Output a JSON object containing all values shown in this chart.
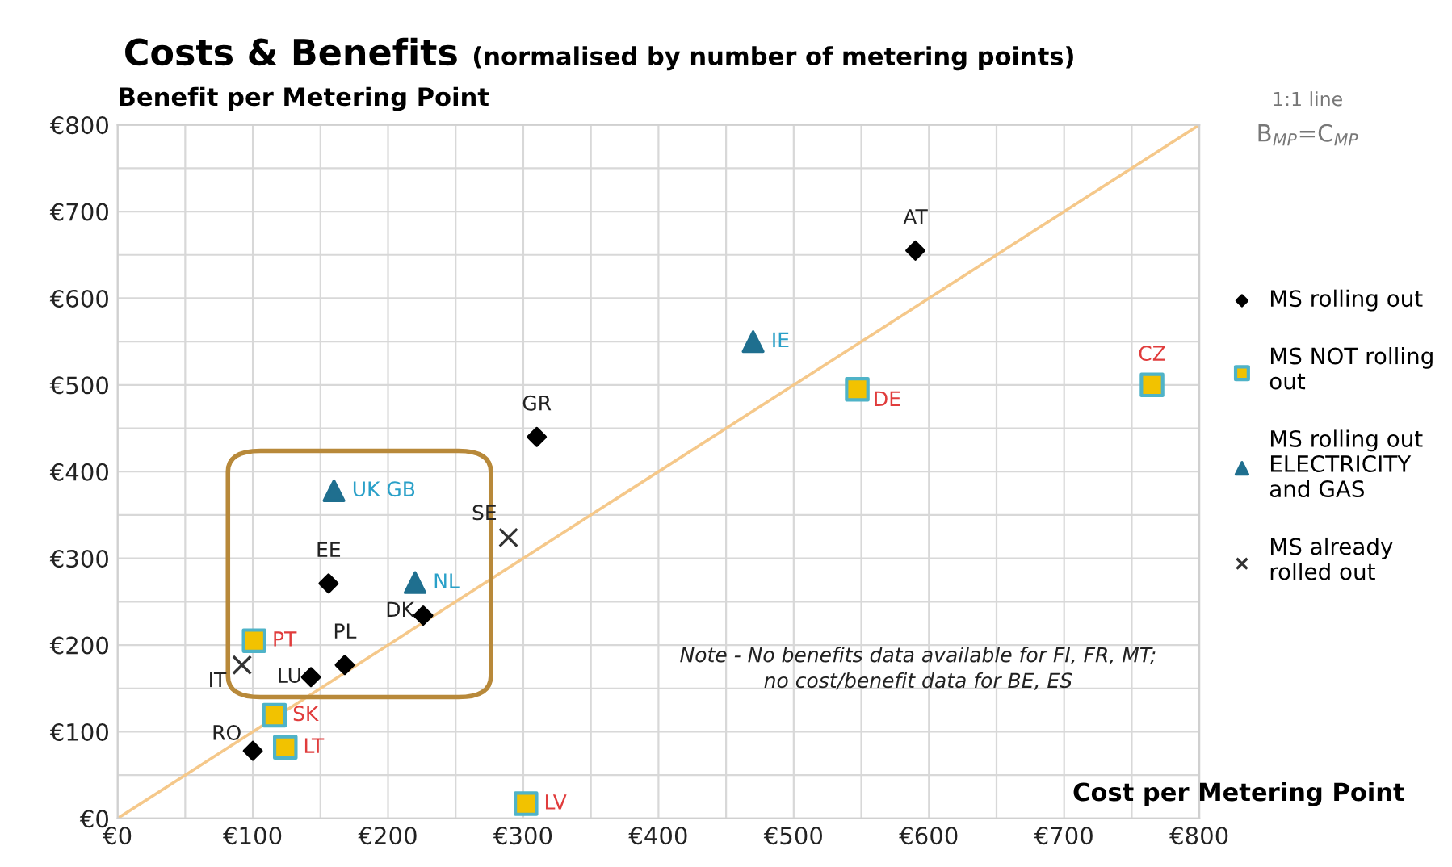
{
  "chart_data": {
    "type": "scatter",
    "title": "Costs & Benefits",
    "subtitle": "(normalised by number of metering points)",
    "xlabel": "Cost per Metering Point",
    "ylabel": "Benefit per Metering Point",
    "xlim": [
      0,
      800
    ],
    "ylim": [
      0,
      800
    ],
    "xticks": [
      {
        "value": 0,
        "label": "€0"
      },
      {
        "value": 50,
        "label": null
      },
      {
        "value": 100,
        "label": "€100"
      },
      {
        "value": 150,
        "label": null
      },
      {
        "value": 200,
        "label": "€200"
      },
      {
        "value": 250,
        "label": null
      },
      {
        "value": 300,
        "label": "€300"
      },
      {
        "value": 350,
        "label": null
      },
      {
        "value": 400,
        "label": "€400"
      },
      {
        "value": 450,
        "label": null
      },
      {
        "value": 500,
        "label": "€500"
      },
      {
        "value": 550,
        "label": null
      },
      {
        "value": 600,
        "label": "€600"
      },
      {
        "value": 650,
        "label": null
      },
      {
        "value": 700,
        "label": "€700"
      },
      {
        "value": 750,
        "label": null
      },
      {
        "value": 800,
        "label": "€800"
      }
    ],
    "yticks": [
      {
        "value": 0,
        "label": "€0"
      },
      {
        "value": 50,
        "label": null
      },
      {
        "value": 100,
        "label": "€100"
      },
      {
        "value": 150,
        "label": null
      },
      {
        "value": 200,
        "label": "€200"
      },
      {
        "value": 250,
        "label": null
      },
      {
        "value": 300,
        "label": "€300"
      },
      {
        "value": 350,
        "label": null
      },
      {
        "value": 400,
        "label": "€400"
      },
      {
        "value": 450,
        "label": null
      },
      {
        "value": 500,
        "label": "€500"
      },
      {
        "value": 550,
        "label": null
      },
      {
        "value": 600,
        "label": "€600"
      },
      {
        "value": 650,
        "label": null
      },
      {
        "value": 700,
        "label": "€700"
      },
      {
        "value": 750,
        "label": null
      },
      {
        "value": 800,
        "label": "€800"
      }
    ],
    "grid": true,
    "legend": "right",
    "series": [
      {
        "name": "MS rolling out",
        "color": "#000000",
        "marker": "diamond",
        "x": [
          590,
          310,
          156,
          226,
          168,
          143,
          100
        ],
        "values": [
          655,
          440,
          271,
          234,
          177,
          163,
          78
        ],
        "value_labels": [
          "AT",
          "GR",
          "EE",
          "DK",
          "PL",
          "LU",
          "RO"
        ]
      },
      {
        "name": "MS NOT rolling out",
        "color": "#f2c200",
        "marker": "square",
        "x": [
          765,
          547,
          101,
          116,
          124,
          302
        ],
        "values": [
          500,
          495,
          205,
          119,
          82,
          17
        ],
        "value_labels": [
          "CZ",
          "DE",
          "PT",
          "SK",
          "LT",
          "LV"
        ]
      },
      {
        "name": "MS rolling out ELECTRICITY and GAS",
        "color": "#1f6f8f",
        "marker": "triangle",
        "x": [
          470,
          160,
          220
        ],
        "values": [
          550,
          378,
          272
        ],
        "value_labels": [
          "IE",
          "UK GB",
          "NL"
        ]
      },
      {
        "name": "MS already rolled out",
        "color": "#333333",
        "marker": "cross",
        "x": [
          289,
          92
        ],
        "values": [
          324,
          177
        ],
        "value_labels": [
          "SE",
          "IT"
        ]
      },
      {
        "type": "line",
        "color": "#f5c88a",
        "marker": "none",
        "x": [
          0,
          800
        ],
        "values": [
          0,
          800
        ]
      }
    ],
    "annotations": [
      "1:1 line",
      "B$_{MP}$=C$_{MP}$",
      "Note - No benefits data available for FI, FR, MT;\nno cost/benefit data for BE, ES"
    ]
  }
}
